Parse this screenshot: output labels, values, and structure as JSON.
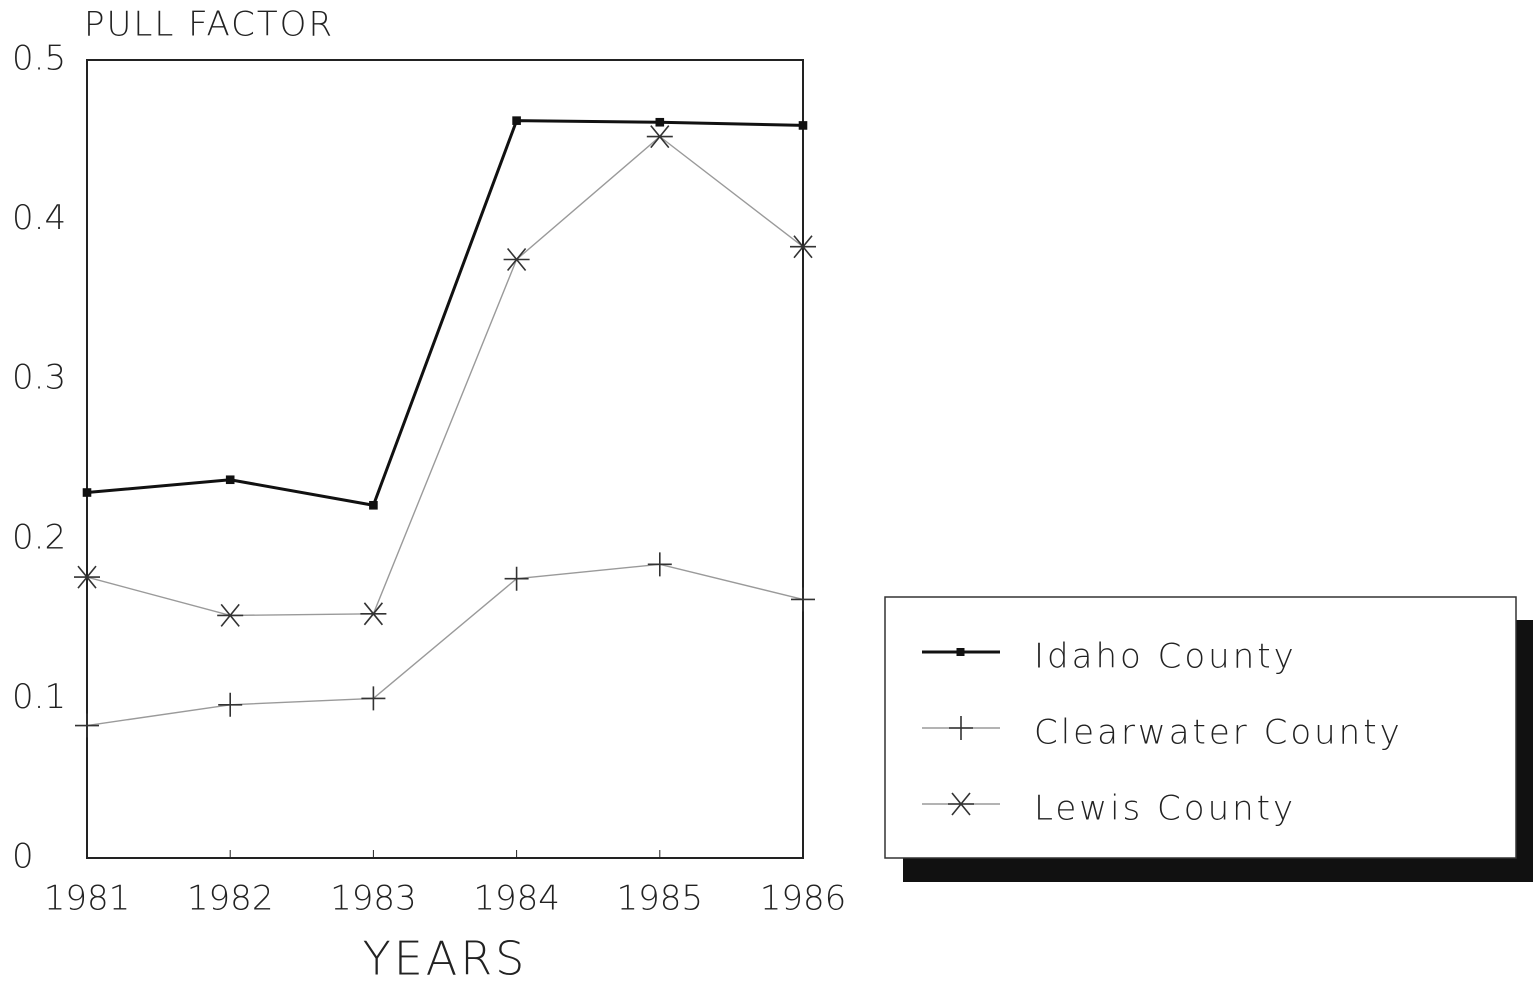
{
  "chart_data": {
    "type": "line",
    "ylabel": "PULL FACTOR",
    "xlabel": "YEARS",
    "x": [
      1981,
      1982,
      1983,
      1984,
      1985,
      1986
    ],
    "xlim": [
      1981,
      1986
    ],
    "xticks": [
      1981,
      1982,
      1983,
      1984,
      1985,
      1986
    ],
    "ylim": [
      0,
      0.5
    ],
    "yticks": [
      0,
      0.1,
      0.2,
      0.3,
      0.4,
      0.5
    ],
    "legend": "right",
    "series": [
      {
        "name": "Idaho County",
        "color": "#111111",
        "marker": "square",
        "values": [
          0.229,
          0.237,
          0.221,
          0.462,
          0.461,
          0.459
        ]
      },
      {
        "name": "Clearwater County",
        "color": "#9a9a9a",
        "marker": "plus",
        "values": [
          0.083,
          0.096,
          0.1,
          0.175,
          0.184,
          0.162
        ]
      },
      {
        "name": "Lewis County",
        "color": "#9a9a9a",
        "marker": "asterisk",
        "values": [
          0.176,
          0.152,
          0.153,
          0.375,
          0.452,
          0.383
        ]
      }
    ]
  }
}
